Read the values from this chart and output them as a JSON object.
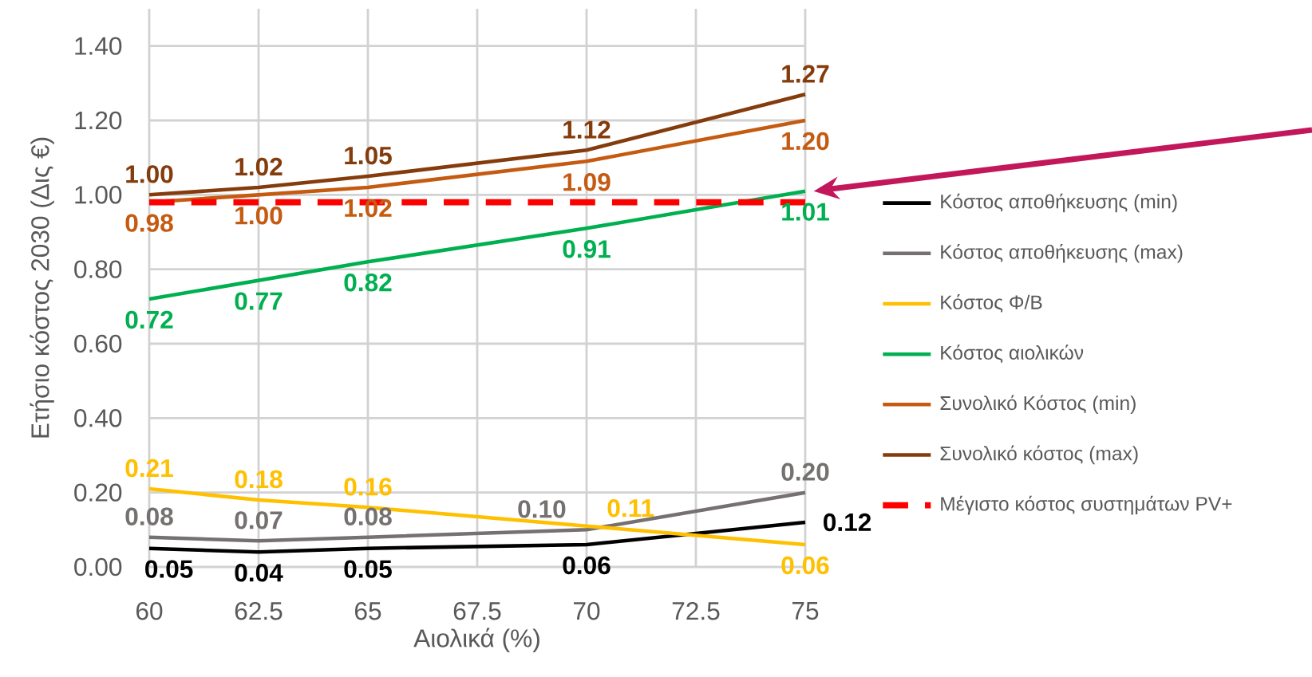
{
  "chart_data": {
    "type": "line",
    "xlabel": "Αιολικά (%)",
    "ylabel": "Ετήσιο κόστος 2030 (Δις €)",
    "x": [
      60,
      62.5,
      65,
      70,
      75
    ],
    "series": [
      {
        "name": "Κόστος αποθήκευσης (min)",
        "color": "#000000",
        "values": [
          0.05,
          0.04,
          0.05,
          0.06,
          0.12
        ],
        "value_labels": [
          "0.05",
          "0.04",
          "0.05",
          "0.06",
          "0.12"
        ]
      },
      {
        "name": "Κόστος αποθήκευσης (max)",
        "color": "#767171",
        "values": [
          0.08,
          0.07,
          0.08,
          0.1,
          0.2
        ],
        "value_labels": [
          "0.08",
          "0.07",
          "0.08",
          "0.10",
          "0.20"
        ]
      },
      {
        "name": "Κόστος Φ/Β",
        "color": "#ffc000",
        "values": [
          0.21,
          0.18,
          0.16,
          0.11,
          0.06
        ],
        "value_labels": [
          "0.21",
          "0.18",
          "0.16",
          "0.11",
          "0.06"
        ]
      },
      {
        "name": "Κόστος αιολικών",
        "color": "#00b050",
        "values": [
          0.72,
          0.77,
          0.82,
          0.91,
          1.01
        ],
        "value_labels": [
          "0.72",
          "0.77",
          "0.82",
          "0.91",
          "1.01"
        ]
      },
      {
        "name": "Συνολικό Κόστος (min)",
        "color": "#c55a11",
        "values": [
          0.98,
          1.0,
          1.02,
          1.09,
          1.2
        ],
        "value_labels": [
          "0.98",
          "1.00",
          "1.02",
          "1.09",
          "1.20"
        ]
      },
      {
        "name": "Συνολικό κόστος (max)",
        "color": "#843c0c",
        "values": [
          1.0,
          1.02,
          1.05,
          1.12,
          1.27
        ],
        "value_labels": [
          "1.00",
          "1.02",
          "1.05",
          "1.12",
          "1.27"
        ]
      },
      {
        "name": "Μέγιστο κόστος συστημάτων PV+",
        "color": "#ff0000",
        "values": [
          0.98,
          0.98,
          0.98,
          0.98,
          0.98
        ],
        "line_style": "dashed"
      }
    ],
    "xlim": [
      60,
      75
    ],
    "xticks": [
      60,
      62.5,
      65,
      67.5,
      70,
      72.5,
      75
    ],
    "ylim": [
      0,
      1.5
    ],
    "yticks": [
      {
        "value": 0,
        "label": "0.00"
      },
      {
        "value": 0.2,
        "label": "0.20"
      },
      {
        "value": 0.4,
        "label": "0.40"
      },
      {
        "value": 0.6,
        "label": "0.60"
      },
      {
        "value": 0.8,
        "label": "0.80"
      },
      {
        "value": 1.0,
        "label": "1.00"
      },
      {
        "value": 1.2,
        "label": "1.20"
      },
      {
        "value": 1.4,
        "label": "1.40"
      }
    ],
    "grid": true,
    "legend": "right",
    "marker": "none",
    "line_style": "solid"
  }
}
